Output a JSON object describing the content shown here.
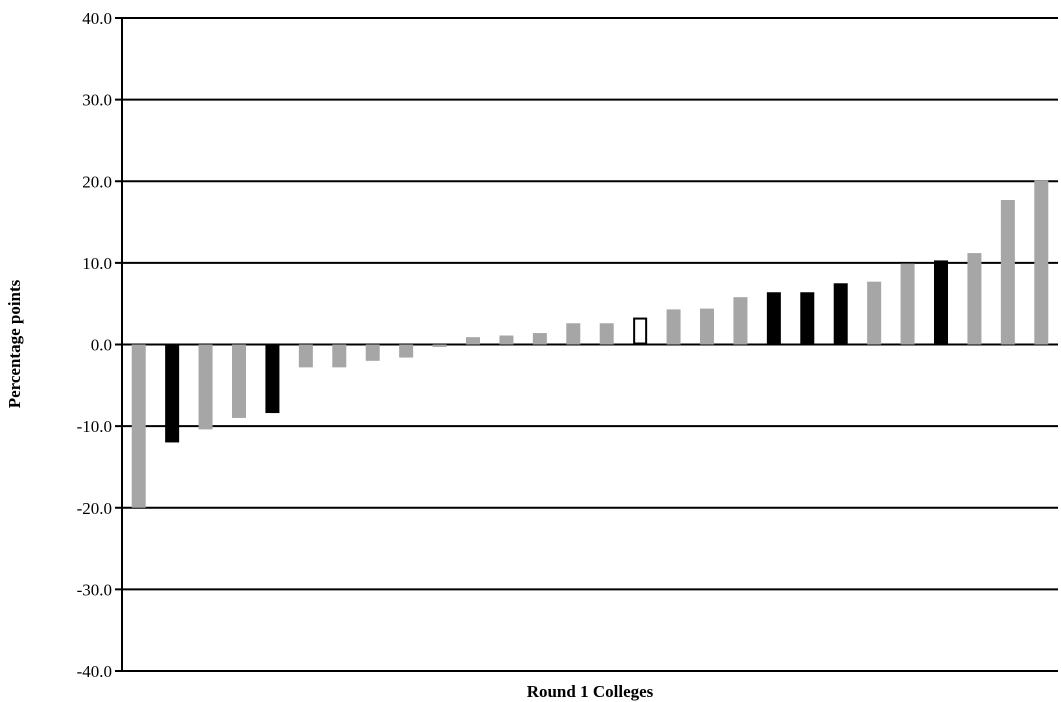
{
  "chart_data": {
    "type": "bar",
    "xlabel": "Round 1 Colleges",
    "ylabel": "Percentage points",
    "ylim": [
      -40,
      40
    ],
    "ytick_step": 10,
    "ytick_labels": [
      "40.0",
      "30.0",
      "20.0",
      "10.0",
      "0.0",
      "-10.0",
      "-20.0",
      "-30.0",
      "-40.0"
    ],
    "grid": true,
    "legend": "none",
    "series": [
      {
        "values": [
          -20.0,
          -12.0,
          -10.4,
          -9.0,
          -8.4,
          -2.8,
          -2.8,
          -2.0,
          -1.6,
          -0.3,
          0.9,
          1.1,
          1.4,
          2.6,
          2.6,
          3.3,
          4.3,
          4.4,
          5.8,
          6.4,
          6.4,
          7.5,
          7.7,
          9.9,
          10.3,
          11.2,
          17.7,
          20.1
        ],
        "styles": [
          "gray",
          "black",
          "gray",
          "gray",
          "black",
          "gray",
          "gray",
          "gray",
          "gray",
          "gray",
          "gray",
          "gray",
          "gray",
          "gray",
          "gray",
          "outline",
          "gray",
          "gray",
          "gray",
          "black",
          "black",
          "black",
          "gray",
          "gray",
          "black",
          "gray",
          "gray",
          "gray"
        ]
      }
    ],
    "colors": {
      "gray": "#a6a6a6",
      "black": "#000000",
      "outline_fill": "#ffffff",
      "outline_stroke": "#000000"
    }
  }
}
